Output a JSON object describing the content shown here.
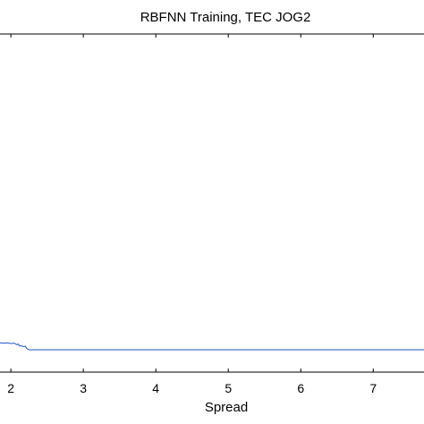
{
  "chart_data": {
    "type": "line",
    "title": "RBFNN Training, TEC JOG2",
    "xlabel": "Spread",
    "ylabel": "",
    "x_ticks": [
      2,
      3,
      4,
      5,
      6,
      7
    ],
    "xlim": [
      1.85,
      7.7
    ],
    "ylim": [
      0,
      1
    ],
    "grid": false,
    "series": [
      {
        "color": "#2255cc",
        "x": [
          1.85,
          1.9,
          1.95,
          2.0,
          2.05,
          2.08,
          2.1,
          2.12,
          2.15,
          2.18,
          2.2,
          2.22,
          2.25,
          2.3,
          3,
          4,
          5,
          6,
          7,
          7.7
        ],
        "y": [
          0.022,
          0.021,
          0.022,
          0.02,
          0.021,
          0.016,
          0.018,
          0.012,
          0.012,
          0.01,
          0.011,
          0.004,
          0.0,
          0.0,
          0.0,
          0.0,
          0.0,
          0.0,
          0.0,
          0.0
        ]
      }
    ]
  }
}
